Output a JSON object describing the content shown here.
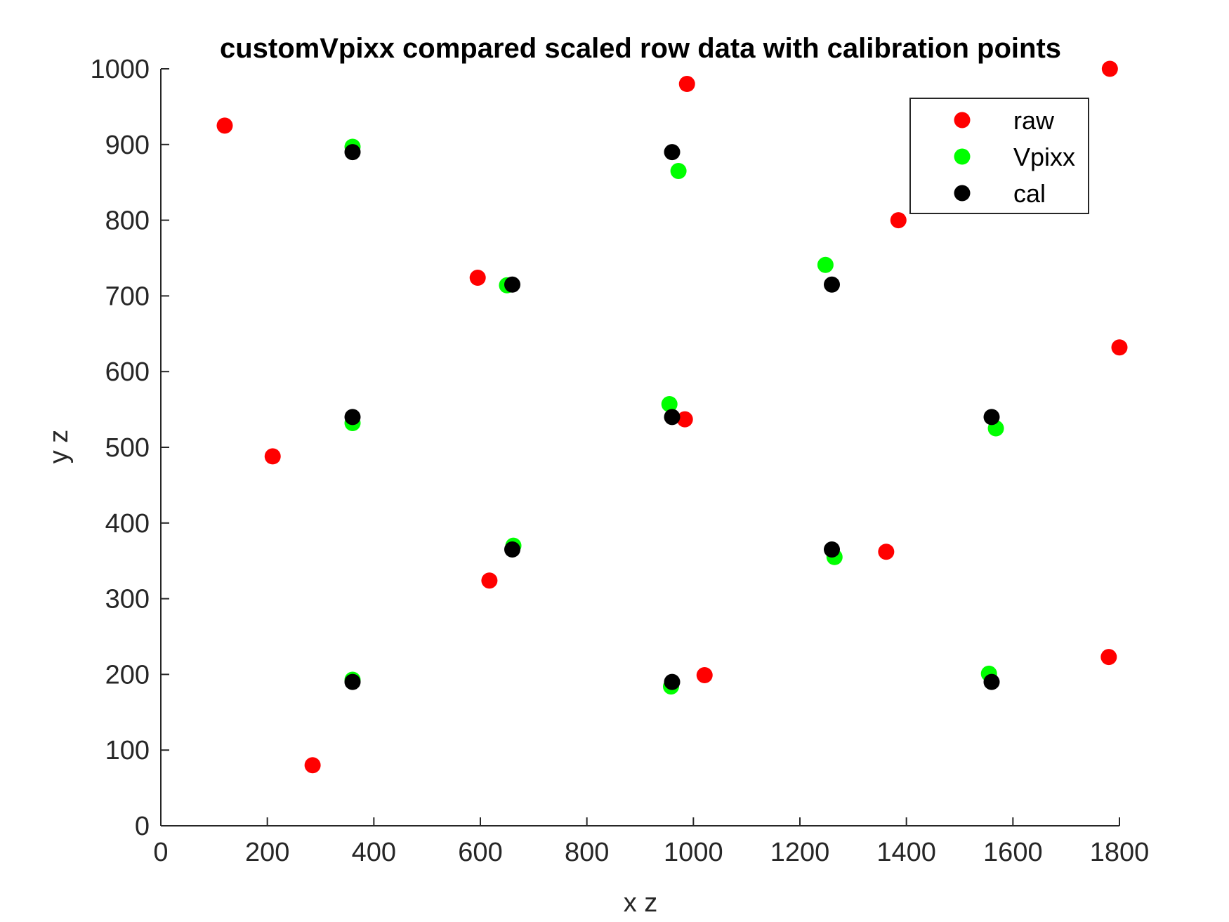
{
  "chart_data": {
    "type": "scatter",
    "title": "customVpixx compared scaled row data with calibration points",
    "xlabel": "x z",
    "ylabel": "y z",
    "xlim": [
      0,
      1800
    ],
    "ylim": [
      0,
      1000
    ],
    "xticks": [
      0,
      200,
      400,
      600,
      800,
      1000,
      1200,
      1400,
      1600,
      1800
    ],
    "yticks": [
      0,
      100,
      200,
      300,
      400,
      500,
      600,
      700,
      800,
      900,
      1000
    ],
    "grid": false,
    "legend_position": "top-right",
    "series": [
      {
        "name": "raw",
        "color": "#ff0000",
        "points": [
          [
            120,
            925
          ],
          [
            988,
            980
          ],
          [
            1782,
            1000
          ],
          [
            1385,
            800
          ],
          [
            595,
            724
          ],
          [
            1800,
            632
          ],
          [
            984,
            537
          ],
          [
            210,
            488
          ],
          [
            1362,
            362
          ],
          [
            617,
            324
          ],
          [
            1021,
            199
          ],
          [
            1780,
            223
          ],
          [
            285,
            80
          ]
        ]
      },
      {
        "name": "Vpixx",
        "color": "#00ff00",
        "points": [
          [
            360,
            897
          ],
          [
            972,
            865
          ],
          [
            1248,
            741
          ],
          [
            650,
            714
          ],
          [
            360,
            532
          ],
          [
            955,
            557
          ],
          [
            1568,
            525
          ],
          [
            662,
            370
          ],
          [
            1265,
            355
          ],
          [
            360,
            193
          ],
          [
            958,
            184
          ],
          [
            1555,
            201
          ]
        ]
      },
      {
        "name": "cal",
        "color": "#000000",
        "points": [
          [
            360,
            890
          ],
          [
            960,
            890
          ],
          [
            660,
            715
          ],
          [
            1260,
            715
          ],
          [
            360,
            540
          ],
          [
            960,
            540
          ],
          [
            1560,
            540
          ],
          [
            660,
            365
          ],
          [
            1260,
            365
          ],
          [
            360,
            190
          ],
          [
            960,
            190
          ],
          [
            1560,
            190
          ]
        ]
      }
    ]
  }
}
